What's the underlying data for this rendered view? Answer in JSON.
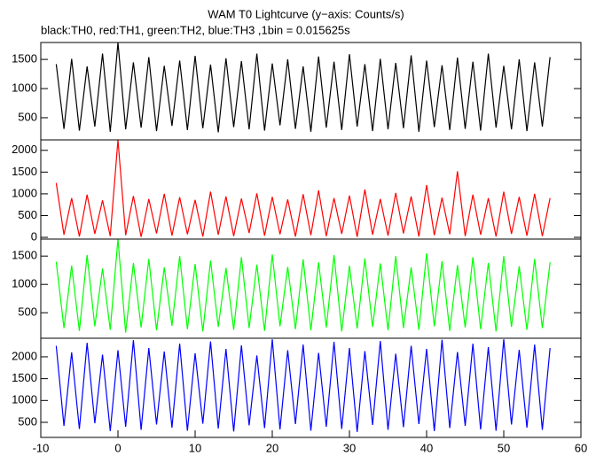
{
  "chart_data": [
    {
      "type": "line",
      "title": "WAM T0 Lightcurve (y−axis: Counts/s)",
      "subtitle": "black:TH0, red:TH1, green:TH2, blue:TH3 ,1bin = 0.015625s",
      "color": "#000000",
      "xlim": [
        -10,
        60
      ],
      "ylim": [
        120,
        1790
      ],
      "yticks": [
        500,
        1000,
        1500
      ],
      "x": [
        -8,
        -7,
        -6,
        -5,
        -4,
        -3,
        -2,
        -1,
        0,
        1,
        2,
        3,
        4,
        5,
        6,
        7,
        8,
        9,
        10,
        11,
        12,
        13,
        14,
        15,
        16,
        17,
        18,
        19,
        20,
        21,
        22,
        23,
        24,
        25,
        26,
        27,
        28,
        29,
        30,
        31,
        32,
        33,
        34,
        35,
        36,
        37,
        38,
        39,
        40,
        41,
        42,
        43,
        44,
        45,
        46,
        47,
        48,
        49,
        50,
        51,
        52,
        53,
        54,
        55,
        56
      ],
      "values": [
        1420,
        310,
        1510,
        280,
        1380,
        350,
        1600,
        260,
        1790,
        300,
        1450,
        330,
        1540,
        270,
        1390,
        360,
        1480,
        290,
        1560,
        320,
        1410,
        250,
        1520,
        340,
        1470,
        300,
        1600,
        280,
        1430,
        370,
        1500,
        310,
        1380,
        260,
        1550,
        330,
        1460,
        290,
        1590,
        350,
        1420,
        270,
        1510,
        300,
        1440,
        320,
        1570,
        260,
        1480,
        340,
        1400,
        290,
        1530,
        310,
        1460,
        280,
        1600,
        330,
        1390,
        300,
        1500,
        270,
        1450,
        350,
        1540
      ]
    },
    {
      "type": "line",
      "color": "#ff0000",
      "xlim": [
        -10,
        60
      ],
      "ylim": [
        -40,
        2240
      ],
      "yticks": [
        0,
        500,
        1000,
        1500,
        2000
      ],
      "x": [
        -8,
        -7,
        -6,
        -5,
        -4,
        -3,
        -2,
        -1,
        0,
        1,
        2,
        3,
        4,
        5,
        6,
        7,
        8,
        9,
        10,
        11,
        12,
        13,
        14,
        15,
        16,
        17,
        18,
        19,
        20,
        21,
        22,
        23,
        24,
        25,
        26,
        27,
        28,
        29,
        30,
        31,
        32,
        33,
        34,
        35,
        36,
        37,
        38,
        39,
        40,
        41,
        42,
        43,
        44,
        45,
        46,
        47,
        48,
        49,
        50,
        51,
        52,
        53,
        54,
        55,
        56
      ],
      "values": [
        1250,
        60,
        900,
        20,
        980,
        80,
        850,
        30,
        2240,
        50,
        950,
        10,
        880,
        90,
        1000,
        40,
        920,
        70,
        860,
        20,
        1050,
        60,
        940,
        30,
        890,
        100,
        1010,
        40,
        930,
        70,
        870,
        20,
        990,
        50,
        1080,
        30,
        900,
        80,
        960,
        10,
        1100,
        60,
        880,
        40,
        1020,
        90,
        940,
        20,
        1200,
        50,
        910,
        70,
        1520,
        30,
        980,
        60,
        900,
        20,
        1050,
        80,
        930,
        40,
        1000,
        30,
        900
      ]
    },
    {
      "type": "line",
      "color": "#00ff00",
      "xlim": [
        -10,
        60
      ],
      "ylim": [
        50,
        1800
      ],
      "yticks": [
        500,
        1000,
        1500
      ],
      "x": [
        -8,
        -7,
        -6,
        -5,
        -4,
        -3,
        -2,
        -1,
        0,
        1,
        2,
        3,
        4,
        5,
        6,
        7,
        8,
        9,
        10,
        11,
        12,
        13,
        14,
        15,
        16,
        17,
        18,
        19,
        20,
        21,
        22,
        23,
        24,
        25,
        26,
        27,
        28,
        29,
        30,
        31,
        32,
        33,
        34,
        35,
        36,
        37,
        38,
        39,
        40,
        41,
        42,
        43,
        44,
        45,
        46,
        47,
        48,
        49,
        50,
        51,
        52,
        53,
        54,
        55,
        56
      ],
      "values": [
        1400,
        230,
        1330,
        180,
        1520,
        260,
        1280,
        200,
        1800,
        150,
        1380,
        240,
        1450,
        190,
        1300,
        270,
        1500,
        210,
        1360,
        170,
        1420,
        250,
        1290,
        200,
        1480,
        230,
        1350,
        180,
        1530,
        260,
        1310,
        210,
        1440,
        190,
        1390,
        240,
        1520,
        170,
        1330,
        220,
        1460,
        250,
        1370,
        190,
        1500,
        230,
        1300,
        200,
        1550,
        260,
        1410,
        180,
        1340,
        240,
        1480,
        210,
        1380,
        170,
        1500,
        250,
        1320,
        200,
        1450,
        230,
        1390
      ]
    },
    {
      "type": "line",
      "color": "#0000ff",
      "xlim": [
        -10,
        60
      ],
      "ylim": [
        155,
        2425
      ],
      "yticks": [
        500,
        1000,
        1500,
        2000
      ],
      "xticks": [
        -10,
        0,
        10,
        20,
        30,
        40,
        50,
        60
      ],
      "x": [
        -8,
        -7,
        -6,
        -5,
        -4,
        -3,
        -2,
        -1,
        0,
        1,
        2,
        3,
        4,
        5,
        6,
        7,
        8,
        9,
        10,
        11,
        12,
        13,
        14,
        15,
        16,
        17,
        18,
        19,
        20,
        21,
        22,
        23,
        24,
        25,
        26,
        27,
        28,
        29,
        30,
        31,
        32,
        33,
        34,
        35,
        36,
        37,
        38,
        39,
        40,
        41,
        42,
        43,
        44,
        45,
        46,
        47,
        48,
        49,
        50,
        51,
        52,
        53,
        54,
        55,
        56
      ],
      "values": [
        2250,
        420,
        2100,
        350,
        2320,
        480,
        2050,
        300,
        2150,
        400,
        2380,
        330,
        2200,
        450,
        2120,
        380,
        2300,
        310,
        2080,
        470,
        2350,
        360,
        2180,
        290,
        2260,
        430,
        2030,
        370,
        2400,
        340,
        2150,
        460,
        2280,
        310,
        2090,
        400,
        2340,
        350,
        2200,
        280,
        2130,
        440,
        2360,
        330,
        2070,
        390,
        2250,
        460,
        2180,
        300,
        2390,
        370,
        2110,
        420,
        2300,
        340,
        2220,
        310,
        2400,
        450,
        2160,
        380,
        2280,
        330,
        2200
      ]
    }
  ]
}
